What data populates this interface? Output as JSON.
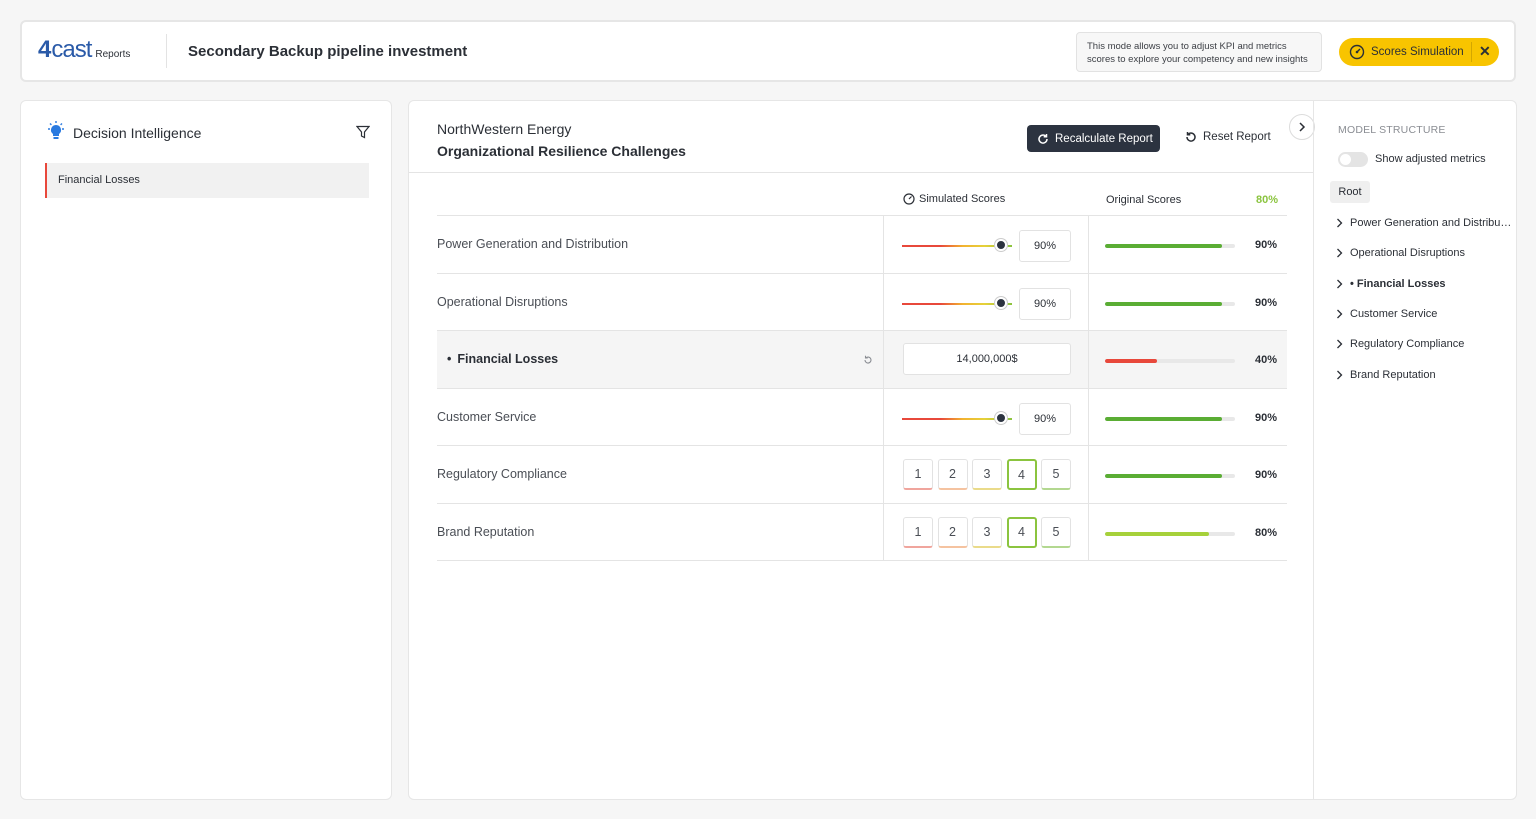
{
  "header": {
    "logo_mark": "4",
    "logo_word": "cast",
    "logo_sub": "Reports",
    "title": "Secondary Backup pipeline investment",
    "note": "This mode allows you to adjust KPI and metrics scores to explore your competency and new insights",
    "sim_button_label": "Scores Simulation",
    "close_glyph": "✕"
  },
  "sidebar": {
    "title": "Decision Intelligence",
    "items": [
      {
        "label": "Financial Losses",
        "active": true
      }
    ]
  },
  "main": {
    "org_name": "NorthWestern Energy",
    "report_title": "Organizational Resilience Challenges",
    "recalc_label": "Recalculate Report",
    "reset_label": "Reset Report",
    "col_simulated": "Simulated Scores",
    "col_original": "Original Scores",
    "col_original_pct": "80%",
    "rows": [
      {
        "label": "Power Generation and Distribution",
        "control": "slider",
        "slider_value": 0.9,
        "value": "90%",
        "orig_fill": 0.9,
        "orig_pct": "90%",
        "orig_color": "#5aad34"
      },
      {
        "label": "Operational Disruptions",
        "control": "slider",
        "slider_value": 0.9,
        "value": "90%",
        "orig_fill": 0.9,
        "orig_pct": "90%",
        "orig_color": "#5aad34"
      },
      {
        "label": "Financial Losses",
        "control": "money",
        "value": "14,000,000$",
        "orig_fill": 0.4,
        "orig_pct": "40%",
        "orig_color": "#e8483b",
        "highlight": true
      },
      {
        "label": "Customer Service",
        "control": "slider",
        "slider_value": 0.9,
        "value": "90%",
        "orig_fill": 0.9,
        "orig_pct": "90%",
        "orig_color": "#5aad34"
      },
      {
        "label": "Regulatory Compliance",
        "control": "rating",
        "options": [
          "1",
          "2",
          "3",
          "4",
          "5"
        ],
        "selected": "4",
        "orig_fill": 0.9,
        "orig_pct": "90%",
        "orig_color": "#5aad34"
      },
      {
        "label": "Brand Reputation",
        "control": "rating",
        "options": [
          "1",
          "2",
          "3",
          "4",
          "5"
        ],
        "selected": "4",
        "orig_fill": 0.8,
        "orig_pct": "80%",
        "orig_color": "#a6d13a"
      }
    ]
  },
  "structure": {
    "title": "MODEL STRUCTURE",
    "toggle_label": "Show adjusted metrics",
    "toggle_on": false,
    "root_label": "Root",
    "items": [
      {
        "label": "Power Generation and Distribu…"
      },
      {
        "label": "Operational Disruptions"
      },
      {
        "label": "• Financial Losses",
        "active": true
      },
      {
        "label": "Customer Service"
      },
      {
        "label": "Regulatory Compliance"
      },
      {
        "label": "Brand Reputation"
      }
    ]
  },
  "colors": {
    "accent_yellow": "#f8c400",
    "brand_blue": "#2a5aa8",
    "dark_button": "#2c3340",
    "alert_red": "#e8483b",
    "good_green": "#5aad34"
  }
}
